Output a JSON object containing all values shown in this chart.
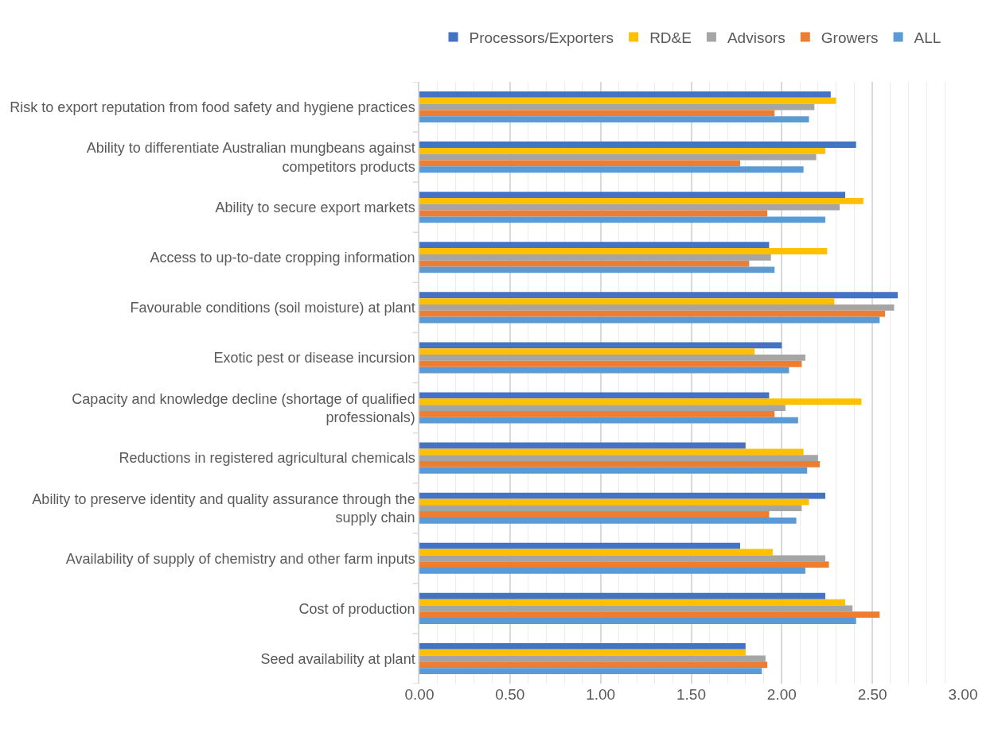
{
  "chart_data": {
    "type": "bar",
    "orientation": "horizontal",
    "categories": [
      "Risk to export reputation from food safety and hygiene practices",
      "Ability to differentiate Australian mungbeans against competitors products",
      "Ability to secure export markets",
      "Access to up-to-date cropping information",
      "Favourable conditions (soil moisture) at plant",
      "Exotic pest or disease incursion",
      "Capacity and knowledge decline (shortage of qualified professionals)",
      "Reductions in registered agricultural chemicals",
      "Ability to preserve identity and quality assurance through the supply chain",
      "Availability of supply of chemistry and other farm inputs",
      "Cost of production",
      "Seed availability at plant"
    ],
    "series": [
      {
        "name": "Processors/Exporters",
        "color": "#4472c4",
        "values": [
          2.27,
          2.41,
          2.35,
          1.93,
          2.64,
          2.0,
          1.93,
          1.8,
          2.24,
          1.77,
          2.24,
          1.8
        ]
      },
      {
        "name": "RD&E",
        "color": "#ffc000",
        "values": [
          2.3,
          2.24,
          2.45,
          2.25,
          2.29,
          1.85,
          2.44,
          2.12,
          2.15,
          1.95,
          2.35,
          1.8
        ]
      },
      {
        "name": "Advisors",
        "color": "#a5a5a5",
        "values": [
          2.18,
          2.19,
          2.32,
          1.94,
          2.62,
          2.13,
          2.02,
          2.2,
          2.11,
          2.24,
          2.39,
          1.91
        ]
      },
      {
        "name": "Growers",
        "color": "#ed7d31",
        "values": [
          1.96,
          1.77,
          1.92,
          1.82,
          2.57,
          2.11,
          1.96,
          2.21,
          1.93,
          2.26,
          2.54,
          1.92
        ]
      },
      {
        "name": "ALL",
        "color": "#5b9bd5",
        "values": [
          2.15,
          2.12,
          2.24,
          1.96,
          2.54,
          2.04,
          2.09,
          2.14,
          2.08,
          2.13,
          2.41,
          1.89
        ]
      }
    ],
    "xlim": [
      0,
      3
    ],
    "xticks": [
      {
        "value": 0,
        "label": "0.00"
      },
      {
        "value": 0.1,
        "label": null
      },
      {
        "value": 0.2,
        "label": null
      },
      {
        "value": 0.3,
        "label": null
      },
      {
        "value": 0.4,
        "label": null
      },
      {
        "value": 0.5,
        "label": "0.50"
      },
      {
        "value": 0.6,
        "label": null
      },
      {
        "value": 0.7,
        "label": null
      },
      {
        "value": 0.8,
        "label": null
      },
      {
        "value": 0.9,
        "label": null
      },
      {
        "value": 1,
        "label": "1.00"
      },
      {
        "value": 1.1,
        "label": null
      },
      {
        "value": 1.2,
        "label": null
      },
      {
        "value": 1.3,
        "label": null
      },
      {
        "value": 1.4,
        "label": null
      },
      {
        "value": 1.5,
        "label": "1.50"
      },
      {
        "value": 1.6,
        "label": null
      },
      {
        "value": 1.7,
        "label": null
      },
      {
        "value": 1.8,
        "label": null
      },
      {
        "value": 1.9,
        "label": null
      },
      {
        "value": 2,
        "label": "2.00"
      },
      {
        "value": 2.1,
        "label": null
      },
      {
        "value": 2.2,
        "label": null
      },
      {
        "value": 2.3,
        "label": null
      },
      {
        "value": 2.4,
        "label": null
      },
      {
        "value": 2.5,
        "label": "2.50"
      },
      {
        "value": 2.6,
        "label": null
      },
      {
        "value": 2.7,
        "label": null
      },
      {
        "value": 2.8,
        "label": null
      },
      {
        "value": 2.9,
        "label": null
      },
      {
        "value": 3,
        "label": "3.00"
      }
    ],
    "grid": "x",
    "legend": "top"
  }
}
